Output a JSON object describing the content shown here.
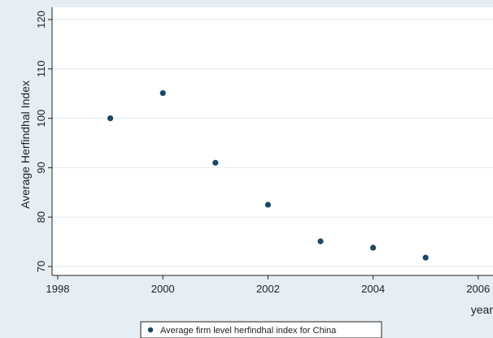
{
  "chart_data": {
    "type": "scatter",
    "title": "",
    "xlabel": "year",
    "ylabel": "Average Herfindhal Index",
    "xlim": [
      1998,
      2006
    ],
    "ylim": [
      68,
      121
    ],
    "x_ticks": [
      1998,
      2000,
      2002,
      2004,
      2006
    ],
    "y_ticks": [
      70,
      80,
      90,
      100,
      110,
      120
    ],
    "grid": true,
    "legend_position": "bottom",
    "colors": {
      "background": "#e6eef3",
      "plot_area": "#ffffff",
      "grid": "#e3e9ee",
      "marker": "#1a4766"
    },
    "series": [
      {
        "name": "Average firm level herfindhal index for China",
        "x": [
          1999,
          2000,
          2001,
          2002,
          2003,
          2004,
          2005
        ],
        "y": [
          100,
          105.1,
          91,
          82.5,
          75.1,
          73.8,
          71.8
        ]
      }
    ]
  }
}
